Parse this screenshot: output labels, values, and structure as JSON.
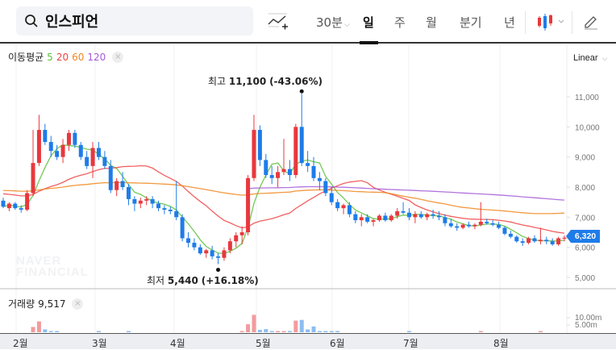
{
  "search": {
    "query": "인스피언"
  },
  "toolbar": {
    "intraday_label": "30분",
    "periods": [
      "일",
      "주",
      "월",
      "분기",
      "년"
    ],
    "active_period": "일"
  },
  "legend": {
    "label": "이동평균",
    "ma": [
      {
        "period": "5",
        "color": "#5bbf3a"
      },
      {
        "period": "20",
        "color": "#ee4444"
      },
      {
        "period": "60",
        "color": "#f0871f"
      },
      {
        "period": "120",
        "color": "#a45bd6"
      }
    ],
    "close": "×"
  },
  "scale": {
    "label": "Linear"
  },
  "price_axis": {
    "ticks": [
      "11,000",
      "10,000",
      "9,000",
      "8,000",
      "7,000",
      "6,000",
      "5,000"
    ]
  },
  "current_price": "6,320",
  "annotations": {
    "high_label": "최고",
    "high_value": "11,100",
    "high_pct": "(-43.06%)",
    "low_label": "최저",
    "low_value": "5,440",
    "low_pct": "(+16.18%)"
  },
  "volume": {
    "label": "거래량",
    "value": "9,517",
    "close": "×",
    "ticks": [
      "10.00m",
      "5.00m"
    ]
  },
  "x_axis": {
    "months": [
      "2월",
      "3월",
      "4월",
      "5월",
      "6월",
      "7월",
      "8월"
    ]
  },
  "watermark": [
    "NAVER",
    "FINANCIAL"
  ],
  "colors": {
    "up": "#e8383d",
    "down": "#1e7ce8",
    "price_tag": "#1e7ce8"
  },
  "chart_data": {
    "type": "candlestick",
    "title": "인스피언 일봉",
    "xlabel": "",
    "ylabel": "",
    "ylim": [
      4700,
      11700
    ],
    "x_ticks": [
      "2월",
      "3월",
      "4월",
      "5월",
      "6월",
      "7월",
      "8월"
    ],
    "y_ticks": [
      5000,
      6000,
      7000,
      8000,
      9000,
      10000,
      11000
    ],
    "high": {
      "value": 11100,
      "pct": -43.06
    },
    "low": {
      "value": 5440,
      "pct": 16.18
    },
    "last_close": 6320,
    "last_volume": 9517,
    "moving_averages": [
      5,
      20,
      60,
      120
    ],
    "ohlc_approx": [
      [
        7550,
        7650,
        7300,
        7350
      ],
      [
        7300,
        7500,
        7200,
        7450
      ],
      [
        7450,
        7500,
        7250,
        7300
      ],
      [
        7300,
        7400,
        7150,
        7250
      ],
      [
        7250,
        7900,
        7200,
        7800
      ],
      [
        7800,
        9900,
        7700,
        8800
      ],
      [
        8800,
        10400,
        8700,
        9900
      ],
      [
        9900,
        10100,
        9400,
        9500
      ],
      [
        9500,
        9700,
        9000,
        9200
      ],
      [
        9200,
        9400,
        8900,
        9000
      ],
      [
        9000,
        9600,
        8800,
        9400
      ],
      [
        9400,
        9900,
        9200,
        9800
      ],
      [
        9800,
        9900,
        9300,
        9400
      ],
      [
        9400,
        9500,
        8900,
        9000
      ],
      [
        9000,
        9200,
        8600,
        8700
      ],
      [
        8700,
        9500,
        8300,
        9300
      ],
      [
        9300,
        9500,
        8900,
        9000
      ],
      [
        9000,
        9200,
        8600,
        8700
      ],
      [
        8700,
        8900,
        7800,
        7900
      ],
      [
        7900,
        8300,
        7700,
        8200
      ],
      [
        8200,
        8500,
        7900,
        8000
      ],
      [
        8000,
        8100,
        7400,
        7600
      ],
      [
        7600,
        7700,
        7200,
        7450
      ],
      [
        7450,
        7650,
        7300,
        7550
      ],
      [
        7550,
        7700,
        7400,
        7600
      ],
      [
        7600,
        7700,
        7300,
        7450
      ],
      [
        7450,
        7550,
        7200,
        7300
      ],
      [
        7300,
        7400,
        7100,
        7250
      ],
      [
        7250,
        7350,
        7100,
        7200
      ],
      [
        7200,
        8200,
        6900,
        7000
      ],
      [
        7000,
        7100,
        6200,
        6300
      ],
      [
        6300,
        6500,
        6000,
        6150
      ],
      [
        6150,
        6300,
        5900,
        6000
      ],
      [
        6000,
        6100,
        5750,
        5800
      ],
      [
        5800,
        5950,
        5650,
        5900
      ],
      [
        5900,
        6050,
        5600,
        5700
      ],
      [
        5700,
        5800,
        5440,
        5650
      ],
      [
        5650,
        6000,
        5550,
        5900
      ],
      [
        5900,
        6300,
        5800,
        6200
      ],
      [
        6200,
        6500,
        6000,
        6400
      ],
      [
        6400,
        6700,
        6100,
        6500
      ],
      [
        6500,
        8400,
        6400,
        8300
      ],
      [
        8300,
        10400,
        8200,
        9900
      ],
      [
        9900,
        10050,
        8700,
        8900
      ],
      [
        8900,
        9100,
        8300,
        8400
      ],
      [
        8400,
        8700,
        8100,
        8300
      ],
      [
        8300,
        8700,
        8000,
        8500
      ],
      [
        8500,
        9600,
        8400,
        8600
      ],
      [
        8600,
        8900,
        8200,
        8400
      ],
      [
        8400,
        10100,
        8300,
        10000
      ],
      [
        10000,
        11100,
        8700,
        8800
      ],
      [
        8800,
        9200,
        8500,
        8700
      ],
      [
        8700,
        9000,
        8200,
        8300
      ],
      [
        8300,
        8500,
        7900,
        8200
      ],
      [
        8200,
        8300,
        7700,
        7800
      ],
      [
        7800,
        8000,
        7400,
        7500
      ],
      [
        7500,
        7600,
        7200,
        7300
      ],
      [
        7300,
        7450,
        7100,
        7400
      ],
      [
        7400,
        7500,
        7000,
        7100
      ],
      [
        7100,
        7200,
        6800,
        6900
      ],
      [
        6900,
        7100,
        6700,
        7000
      ],
      [
        7000,
        7100,
        6800,
        6850
      ],
      [
        6850,
        6950,
        6700,
        6900
      ],
      [
        6900,
        7100,
        6850,
        7050
      ],
      [
        7050,
        7150,
        6850,
        6900
      ],
      [
        6900,
        7100,
        6850,
        7050
      ],
      [
        7050,
        7300,
        6950,
        7200
      ],
      [
        7200,
        7500,
        7100,
        7150
      ],
      [
        7150,
        7300,
        6900,
        7000
      ],
      [
        7000,
        7200,
        6800,
        7100
      ],
      [
        7100,
        7200,
        6950,
        7000
      ],
      [
        7000,
        7150,
        6900,
        7100
      ],
      [
        7100,
        7250,
        6950,
        7050
      ],
      [
        7050,
        7200,
        6900,
        7000
      ],
      [
        7000,
        7100,
        6700,
        6800
      ],
      [
        6800,
        6950,
        6650,
        6700
      ],
      [
        6700,
        6800,
        6550,
        6650
      ],
      [
        6650,
        6800,
        6600,
        6750
      ],
      [
        6750,
        6850,
        6650,
        6700
      ],
      [
        6700,
        6800,
        6600,
        6750
      ],
      [
        6750,
        7500,
        6700,
        6850
      ],
      [
        6850,
        6950,
        6750,
        6800
      ],
      [
        6800,
        6900,
        6700,
        6750
      ],
      [
        6750,
        6850,
        6600,
        6650
      ],
      [
        6650,
        6700,
        6400,
        6450
      ],
      [
        6450,
        6550,
        6300,
        6350
      ],
      [
        6350,
        6400,
        6150,
        6200
      ],
      [
        6200,
        6300,
        6050,
        6150
      ],
      [
        6150,
        6350,
        6100,
        6300
      ],
      [
        6300,
        6400,
        6150,
        6200
      ],
      [
        6200,
        6650,
        6100,
        6250
      ],
      [
        6250,
        6350,
        6100,
        6200
      ],
      [
        6200,
        6300,
        6050,
        6100
      ],
      [
        6100,
        6350,
        6050,
        6300
      ],
      [
        6300,
        6400,
        6200,
        6320
      ]
    ],
    "volume_approx_m": [
      0,
      0,
      0,
      0,
      0,
      2.2,
      4.5,
      1.2,
      0.3,
      0.3,
      0,
      0,
      0,
      0,
      0,
      0,
      0.2,
      0,
      0,
      0,
      0,
      0.2,
      0,
      0,
      0,
      0,
      0,
      0,
      0,
      0,
      0,
      0,
      0,
      0,
      0,
      0,
      0,
      0,
      0,
      0,
      0.2,
      3.3,
      7.2,
      1.0,
      1.3,
      0.3,
      0.3,
      0.4,
      0.5,
      4.8,
      5.1,
      1.2,
      2.4,
      0.5,
      0.3,
      0.3,
      0.3,
      0,
      0,
      0,
      0,
      0,
      0,
      0,
      0,
      0,
      0,
      0,
      0.2,
      0,
      0,
      0,
      0,
      0,
      0,
      0,
      0,
      0,
      0,
      0,
      0.3,
      0,
      0,
      0,
      0,
      0,
      0,
      0,
      0,
      0,
      0.2,
      0,
      0,
      0,
      0,
      0
    ]
  }
}
